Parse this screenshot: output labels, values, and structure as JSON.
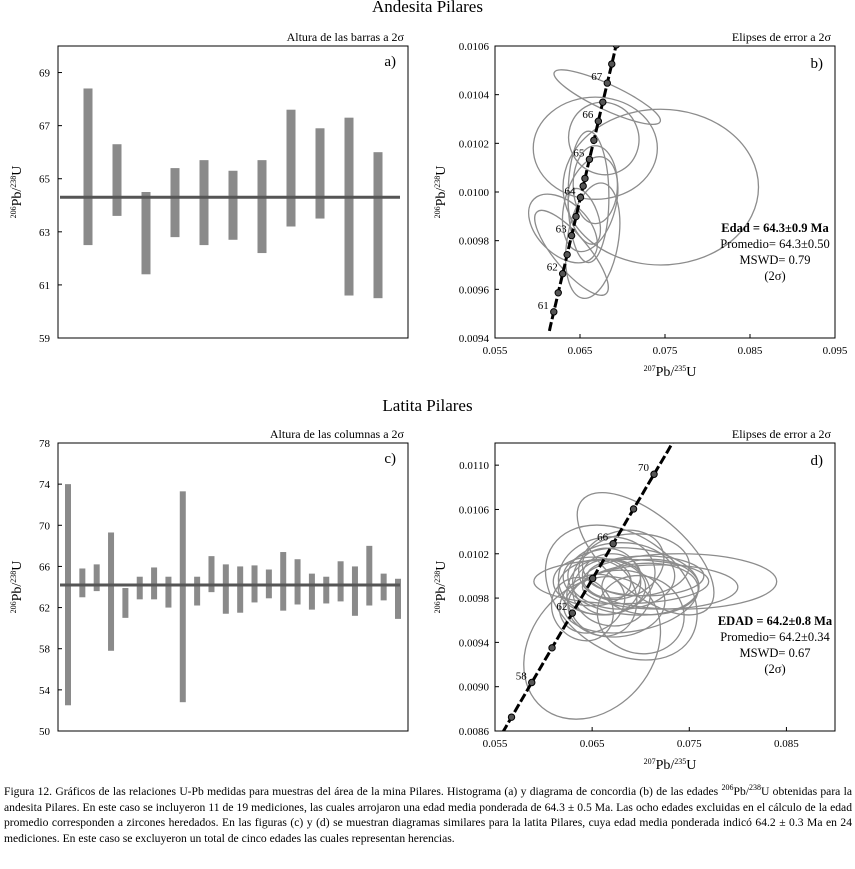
{
  "sections": {
    "top_title": "Andesita Pilares",
    "bottom_title": "Latita Pilares"
  },
  "caption": {
    "p1": "Figura 12. Gráficos de las relaciones U-Pb medidas para muestras del área de la mina Pilares. Histograma (a) y diagrama de concordia (b) de las edades ",
    "sup1": "206",
    "p2": "Pb/",
    "sup2": "238",
    "p3": "U obtenidas para la andesita Pilares. En este caso se incluyeron 11 de 19 mediciones, las cuales arrojaron una edad media ponderada de 64.3 ± 0.5 Ma. Las ocho edades excluidas en el cálculo de la edad promedio corresponden a zircones heredados. En las figuras (c) y (d) se muestran diagramas similares para la latita Pilares, cuya edad media ponderada indicó 64.2 ± 0.3 Ma en 24 mediciones. En este caso se excluyeron un total de cinco edades las cuales representan herencias."
  },
  "colors": {
    "bar": "#8a8a8a",
    "mean": "#555555",
    "ellipse": "#8c8c8c",
    "concordia": "#000000"
  },
  "chart_data": [
    {
      "id": "a",
      "type": "bar",
      "panel_label": "a)",
      "title": "Altura de las barras a 2σ",
      "ylabel_parts": {
        "sup1": "206",
        "base1": "Pb/",
        "sup2": "238",
        "base2": "U"
      },
      "ylim": [
        59,
        70
      ],
      "yticks": [
        "59",
        "61",
        "63",
        "65",
        "67",
        "69"
      ],
      "ytick_values": [
        59,
        61,
        63,
        65,
        67,
        69
      ],
      "mean": 64.3,
      "ranges": [
        [
          62.5,
          68.4
        ],
        [
          63.6,
          66.3
        ],
        [
          61.4,
          64.5
        ],
        [
          62.8,
          65.4
        ],
        [
          62.5,
          65.7
        ],
        [
          62.7,
          65.3
        ],
        [
          62.2,
          65.7
        ],
        [
          63.2,
          67.6
        ],
        [
          63.5,
          66.9
        ],
        [
          60.6,
          67.3
        ],
        [
          60.5,
          66.0
        ]
      ]
    },
    {
      "id": "b",
      "type": "scatter",
      "subtype": "concordia",
      "panel_label": "b)",
      "title": "Elipses de error a 2σ",
      "xlabel_parts": {
        "sup1": "207",
        "base1": "Pb/",
        "sup2": "235",
        "base2": "U"
      },
      "ylabel_parts": {
        "sup1": "206",
        "base1": "Pb/",
        "sup2": "238",
        "base2": "U"
      },
      "xlim": [
        0.055,
        0.095
      ],
      "ylim": [
        0.0094,
        0.0106
      ],
      "xticks": [
        "0.055",
        "0.065",
        "0.075",
        "0.085",
        "0.095"
      ],
      "xtick_values": [
        0.055,
        0.065,
        0.075,
        0.085,
        0.095
      ],
      "yticks": [
        "0.0094",
        "0.0096",
        "0.0098",
        "0.0100",
        "0.0102",
        "0.0104",
        "0.0106"
      ],
      "ytick_values": [
        0.0094,
        0.0096,
        0.0098,
        0.01,
        0.0102,
        0.0104,
        0.0106
      ],
      "concordia_age_range": [
        60.5,
        68.5
      ],
      "age_marks": [
        61,
        61.5,
        62,
        62.5,
        63,
        63.5,
        64,
        64.3,
        64.5,
        65,
        65.5,
        66,
        66.5,
        67,
        67.5,
        68
      ],
      "age_labels": [
        {
          "age": 61,
          "text": "61"
        },
        {
          "age": 62,
          "text": "62"
        },
        {
          "age": 63,
          "text": "63"
        },
        {
          "age": 64,
          "text": "64"
        },
        {
          "age": 65,
          "text": "65"
        },
        {
          "age": 66,
          "text": "66"
        },
        {
          "age": 67,
          "text": "67"
        }
      ],
      "ellipses": [
        {
          "x": 0.0682,
          "y": 0.01039,
          "rx": 0.0015,
          "ry": 0.00024,
          "rot": -65
        },
        {
          "x": 0.0668,
          "y": 0.01018,
          "rx": 0.0073,
          "ry": 0.00021,
          "rot": 0
        },
        {
          "x": 0.0678,
          "y": 0.01022,
          "rx": 0.0041,
          "ry": 0.00015,
          "rot": -25
        },
        {
          "x": 0.0745,
          "y": 0.01002,
          "rx": 0.0115,
          "ry": 0.00032,
          "rot": 0
        },
        {
          "x": 0.0668,
          "y": 0.01003,
          "rx": 0.0026,
          "ry": 0.00016,
          "rot": 0
        },
        {
          "x": 0.0662,
          "y": 0.00995,
          "rx": 0.003,
          "ry": 0.0002,
          "rot": 15
        },
        {
          "x": 0.0655,
          "y": 0.0099,
          "rx": 0.0016,
          "ry": 0.00012,
          "rot": -20
        },
        {
          "x": 0.063,
          "y": 0.00985,
          "rx": 0.003,
          "ry": 0.00017,
          "rot": -45
        },
        {
          "x": 0.064,
          "y": 0.00975,
          "rx": 0.002,
          "ry": 0.00022,
          "rot": -40
        },
        {
          "x": 0.0665,
          "y": 0.0098,
          "rx": 0.003,
          "ry": 0.00024,
          "rot": 10
        },
        {
          "x": 0.066,
          "y": 0.00998,
          "rx": 0.0024,
          "ry": 0.00027,
          "rot": 0
        }
      ],
      "annotation": {
        "line1": "Edad = 64.3±0.9 Ma",
        "line2": "Promedio= 64.3±0.50",
        "line3": "MSWD= 0.79",
        "line4": "(2σ)"
      }
    },
    {
      "id": "c",
      "type": "bar",
      "panel_label": "c)",
      "title": "Altura de las columnas a 2σ",
      "ylabel_parts": {
        "sup1": "206",
        "base1": "Pb/",
        "sup2": "238",
        "base2": "U"
      },
      "ylim": [
        50,
        78
      ],
      "yticks": [
        "50",
        "54",
        "58",
        "62",
        "66",
        "70",
        "74",
        "78"
      ],
      "ytick_values": [
        50,
        54,
        58,
        62,
        66,
        70,
        74,
        78
      ],
      "mean": 64.2,
      "ranges": [
        [
          52.5,
          74.0
        ],
        [
          63.0,
          65.8
        ],
        [
          63.6,
          66.2
        ],
        [
          57.8,
          69.3
        ],
        [
          61.0,
          63.9
        ],
        [
          62.8,
          65.0
        ],
        [
          62.8,
          65.9
        ],
        [
          62.0,
          65.0
        ],
        [
          52.8,
          73.3
        ],
        [
          62.2,
          65.0
        ],
        [
          63.5,
          67.0
        ],
        [
          61.4,
          66.2
        ],
        [
          61.5,
          66.0
        ],
        [
          62.5,
          66.1
        ],
        [
          62.9,
          65.7
        ],
        [
          61.7,
          67.4
        ],
        [
          62.3,
          66.7
        ],
        [
          61.8,
          65.3
        ],
        [
          62.4,
          65.0
        ],
        [
          62.6,
          66.5
        ],
        [
          61.2,
          66.0
        ],
        [
          62.2,
          68.0
        ],
        [
          62.7,
          65.3
        ],
        [
          60.9,
          64.8
        ]
      ]
    },
    {
      "id": "d",
      "type": "scatter",
      "subtype": "concordia",
      "panel_label": "d)",
      "title": "Elipses de error a 2σ",
      "xlabel_parts": {
        "sup1": "207",
        "base1": "Pb/",
        "sup2": "235",
        "base2": "U"
      },
      "ylabel_parts": {
        "sup1": "206",
        "base1": "Pb/",
        "sup2": "238",
        "base2": "U"
      },
      "xlim": [
        0.055,
        0.09
      ],
      "ylim": [
        0.0086,
        0.0112
      ],
      "xticks": [
        "0.055",
        "0.065",
        "0.075",
        "0.085"
      ],
      "xtick_values": [
        0.055,
        0.065,
        0.075,
        0.085
      ],
      "yticks": [
        "0.0086",
        "0.0090",
        "0.0094",
        "0.0098",
        "0.0102",
        "0.0106",
        "0.0110"
      ],
      "ytick_values": [
        0.0086,
        0.009,
        0.0094,
        0.0098,
        0.0102,
        0.0106,
        0.011
      ],
      "concordia_age_range": [
        54.5,
        72.5
      ],
      "age_marks": [
        56,
        58,
        60,
        62,
        64,
        66,
        68,
        70
      ],
      "age_labels": [
        {
          "age": 58,
          "text": "58"
        },
        {
          "age": 62,
          "text": "62"
        },
        {
          "age": 66,
          "text": "66"
        },
        {
          "age": 70,
          "text": "70"
        }
      ],
      "ellipses": [
        {
          "x": 0.0705,
          "y": 0.0102,
          "rx": 0.004,
          "ry": 0.00075,
          "rot": -50
        },
        {
          "x": 0.068,
          "y": 0.00985,
          "rx": 0.006,
          "ry": 0.00075,
          "rot": -55
        },
        {
          "x": 0.065,
          "y": 0.00935,
          "rx": 0.008,
          "ry": 0.00055,
          "rot": -50
        },
        {
          "x": 0.074,
          "y": 0.00995,
          "rx": 0.01,
          "ry": 0.00025,
          "rot": 0
        },
        {
          "x": 0.072,
          "y": 0.0099,
          "rx": 0.008,
          "ry": 0.0002,
          "rot": 0
        },
        {
          "x": 0.069,
          "y": 0.00995,
          "rx": 0.007,
          "ry": 0.0003,
          "rot": 5
        },
        {
          "x": 0.068,
          "y": 0.01,
          "rx": 0.0055,
          "ry": 0.0003,
          "rot": 0
        },
        {
          "x": 0.0695,
          "y": 0.0101,
          "rx": 0.0055,
          "ry": 0.00028,
          "rot": 0
        },
        {
          "x": 0.067,
          "y": 0.00985,
          "rx": 0.004,
          "ry": 0.0003,
          "rot": 10
        },
        {
          "x": 0.066,
          "y": 0.0099,
          "rx": 0.0045,
          "ry": 0.00025,
          "rot": 0
        },
        {
          "x": 0.071,
          "y": 0.0099,
          "rx": 0.005,
          "ry": 0.00025,
          "rot": 0
        },
        {
          "x": 0.07,
          "y": 0.00965,
          "rx": 0.0045,
          "ry": 0.00035,
          "rot": 15
        },
        {
          "x": 0.0675,
          "y": 0.00975,
          "rx": 0.005,
          "ry": 0.0003,
          "rot": -5
        },
        {
          "x": 0.0665,
          "y": 0.00995,
          "rx": 0.0035,
          "ry": 0.0003,
          "rot": 5
        },
        {
          "x": 0.065,
          "y": 0.00995,
          "rx": 0.004,
          "ry": 0.00022,
          "rot": 0
        },
        {
          "x": 0.066,
          "y": 0.0098,
          "rx": 0.0035,
          "ry": 0.00035,
          "rot": -25
        },
        {
          "x": 0.0705,
          "y": 0.01,
          "rx": 0.006,
          "ry": 0.00018,
          "rot": 0
        },
        {
          "x": 0.068,
          "y": 0.0101,
          "rx": 0.0045,
          "ry": 0.0003,
          "rot": -20
        },
        {
          "x": 0.067,
          "y": 0.01,
          "rx": 0.003,
          "ry": 0.0002,
          "rot": 0
        },
        {
          "x": 0.069,
          "y": 0.0098,
          "rx": 0.007,
          "ry": 0.0003,
          "rot": -10
        },
        {
          "x": 0.065,
          "y": 0.00975,
          "rx": 0.0035,
          "ry": 0.00025,
          "rot": -30
        },
        {
          "x": 0.064,
          "y": 0.0097,
          "rx": 0.003,
          "ry": 0.0003,
          "rot": -40
        },
        {
          "x": 0.068,
          "y": 0.00995,
          "rx": 0.009,
          "ry": 0.0002,
          "rot": 0
        },
        {
          "x": 0.0665,
          "y": 0.01,
          "rx": 0.005,
          "ry": 0.00035,
          "rot": -10
        }
      ],
      "annotation": {
        "line1": "EDAD = 64.2±0.8 Ma",
        "line2": "Promedio= 64.2±0.34",
        "line3": "MSWD= 0.67",
        "line4": "(2σ)"
      }
    }
  ]
}
